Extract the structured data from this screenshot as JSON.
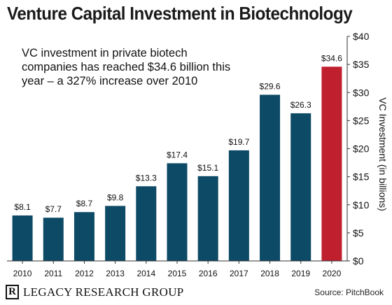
{
  "title": "Venture Capital Investment in Biotechnology",
  "annotation": "VC investment in private biotech companies has reached $34.6 billion this year – a 327% increase over 2010",
  "footer": {
    "logo_letter": "R",
    "logo_text": "LEGACY RESEARCH GROUP",
    "source": "Source: PitchBook"
  },
  "colors": {
    "bar": "#0d4a66",
    "highlight": "#c0202e"
  },
  "chart_data": {
    "type": "bar",
    "title": "Venture Capital Investment in Biotechnology",
    "xlabel": "",
    "ylabel": "VC Investment (in billions)",
    "categories": [
      "2010",
      "2011",
      "2012",
      "2013",
      "2014",
      "2015",
      "2016",
      "2017",
      "2018",
      "2019",
      "2020"
    ],
    "values": [
      8.1,
      7.7,
      8.7,
      9.8,
      13.3,
      17.4,
      15.1,
      19.7,
      29.6,
      26.3,
      34.6
    ],
    "data_labels": [
      "$8.1",
      "$7.7",
      "$8.7",
      "$9.8",
      "$13.3",
      "$17.4",
      "$15.1",
      "$19.7",
      "$29.6",
      "$26.3",
      "$34.6"
    ],
    "highlight_category": "2020",
    "ylim": [
      0,
      40
    ],
    "yticks": [
      0,
      5,
      10,
      15,
      20,
      25,
      30,
      35,
      40
    ],
    "ytick_labels": [
      "$0",
      "$5",
      "$10",
      "$15",
      "$20",
      "$25",
      "$30",
      "$35",
      "$40"
    ],
    "y_axis_side": "right",
    "grid": false,
    "legend": false
  }
}
